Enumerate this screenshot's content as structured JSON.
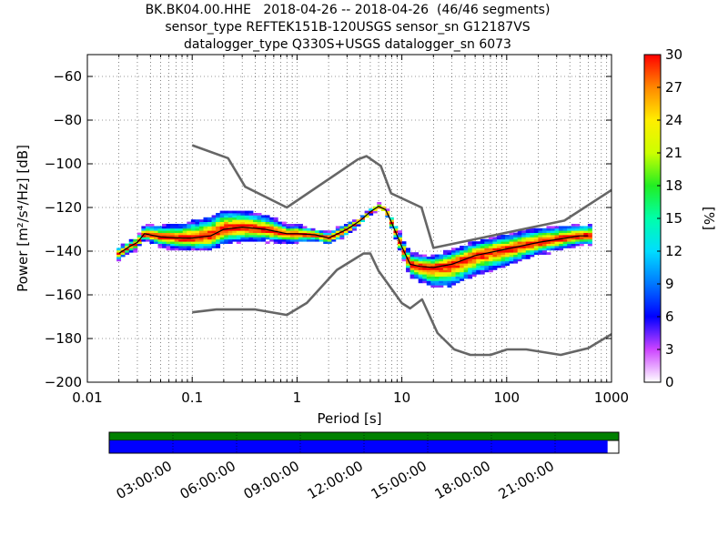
{
  "title": {
    "line1": "BK.BK04.00.HHE   2018-04-26 -- 2018-04-26  (46/46 segments)",
    "line2": "sensor_type REFTEK151B-120USGS sensor_sn G12187VS",
    "line3": "datalogger_type Q330S+USGS datalogger_sn 6073"
  },
  "chart_data": {
    "type": "heatmap",
    "xlabel": "Period [s]",
    "ylabel": "Power [m²/s⁴/Hz] [dB]",
    "xscale": "log",
    "xlim": [
      0.01,
      1000
    ],
    "ylim": [
      -200,
      -50
    ],
    "xticks": [
      "0.01",
      "0.1",
      "1",
      "10",
      "100",
      "1000"
    ],
    "xtick_values": [
      0.01,
      0.1,
      1,
      10,
      100,
      1000
    ],
    "yticks": [
      "−60",
      "−80",
      "−100",
      "−120",
      "−140",
      "−160",
      "−180",
      "−200"
    ],
    "ytick_values": [
      -60,
      -80,
      -100,
      -120,
      -140,
      -160,
      -180,
      -200
    ],
    "grid": true,
    "colorbar": {
      "label": "[%]",
      "range": [
        0,
        30
      ],
      "ticks": [
        "0",
        "3",
        "6",
        "9",
        "12",
        "15",
        "18",
        "21",
        "24",
        "27",
        "30"
      ]
    },
    "noise_model_high": {
      "period": [
        0.1,
        0.22,
        0.32,
        0.8,
        3.8,
        4.6,
        6.3,
        7.9,
        15.4,
        20,
        354.8,
        1000
      ],
      "power": [
        -91.5,
        -97.4,
        -110.5,
        -120,
        -98,
        -96.5,
        -101,
        -113.5,
        -120,
        -138.5,
        -126,
        -112
      ]
    },
    "noise_model_low": {
      "period": [
        0.1,
        0.17,
        0.4,
        0.8,
        1.24,
        2.4,
        4.3,
        5,
        6,
        10,
        12,
        15.6,
        21.9,
        31.6,
        45,
        70,
        101,
        154,
        328,
        600,
        1000
      ],
      "power": [
        -168,
        -166.7,
        -166.7,
        -169.2,
        -163.7,
        -148.6,
        -141.1,
        -141.1,
        -149,
        -163.8,
        -166.2,
        -162.1,
        -177.5,
        -185,
        -187.5,
        -187.5,
        -185,
        -185,
        -187.5,
        -184.4,
        -178
      ]
    },
    "mode_curve": {
      "period": [
        0.02,
        0.025,
        0.03,
        0.035,
        0.05,
        0.08,
        0.1,
        0.15,
        0.2,
        0.3,
        0.5,
        0.8,
        1,
        1.5,
        2,
        3,
        4,
        5,
        6,
        7,
        8,
        10,
        12,
        15,
        20,
        30,
        50,
        100,
        200,
        500,
        600
      ],
      "power": [
        -141,
        -138,
        -136,
        -132,
        -133.5,
        -134,
        -134,
        -133,
        -130,
        -129,
        -130,
        -132,
        -132,
        -132.5,
        -134,
        -130,
        -126,
        -122,
        -119.5,
        -121,
        -127,
        -138,
        -146,
        -147,
        -147.5,
        -146,
        -142,
        -139,
        -136,
        -133,
        -133
      ]
    },
    "spread": {
      "period": [
        0.02,
        0.025,
        0.03,
        0.035,
        0.05,
        0.08,
        0.1,
        0.15,
        0.2,
        0.3,
        0.5,
        0.8,
        1,
        1.5,
        2,
        3,
        4,
        5,
        6,
        7,
        8,
        10,
        12,
        15,
        20,
        30,
        50,
        100,
        200,
        500,
        600
      ],
      "above": [
        2,
        2,
        2,
        3,
        4,
        5,
        6,
        7,
        7,
        6,
        5,
        3,
        3,
        2,
        2,
        2,
        1,
        1,
        1,
        1,
        2,
        3,
        4,
        4,
        4,
        5,
        5,
        5,
        5,
        4,
        4
      ],
      "below": [
        2,
        2,
        2,
        2,
        3,
        4,
        4,
        5,
        5,
        5,
        4,
        3,
        3,
        2,
        2,
        2,
        1,
        1,
        1,
        1,
        2,
        3,
        4,
        5,
        7,
        8,
        7,
        6,
        4,
        3,
        3
      ]
    }
  },
  "timeline": {
    "labels": [
      "03:00:00",
      "06:00:00",
      "09:00:00",
      "12:00:00",
      "15:00:00",
      "18:00:00",
      "21:00:00"
    ],
    "coverage_color": "#008000",
    "data_color": "#0000ff",
    "data_fraction": 0.978
  },
  "colors": {
    "noise_model": "#666666",
    "mode": "#000000",
    "frame": "#000000"
  }
}
